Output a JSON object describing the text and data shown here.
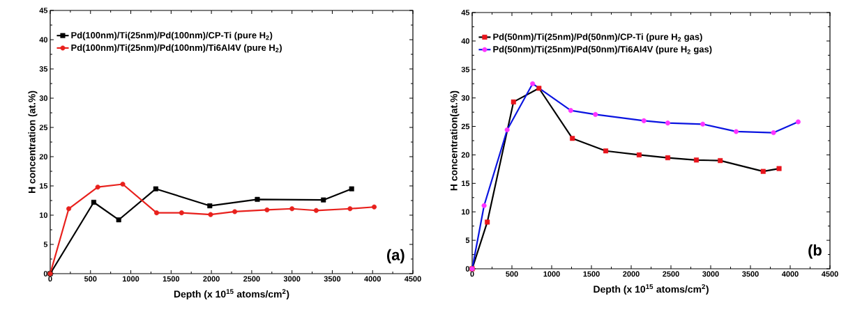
{
  "chart_data": [
    {
      "type": "line",
      "xlabel": "Depth (x 10$^{15}$ atoms/cm$^{2}$)",
      "ylabel": "H concentration (at.%)",
      "xlim": [
        0,
        4500
      ],
      "ylim": [
        0,
        45
      ],
      "xticks": [
        0,
        500,
        1000,
        1500,
        2000,
        2500,
        3000,
        3500,
        4000,
        4500
      ],
      "yticks": [
        0,
        5,
        10,
        15,
        20,
        25,
        30,
        35,
        40,
        45
      ],
      "legend": "top left",
      "annotations": [
        "(a)"
      ],
      "series": [
        {
          "name": "Pd(100nm)/Ti(25nm)/Pd(100nm)/CP-Ti     (pure H$_{2}$)",
          "color": "#000000",
          "marker": "square",
          "x": [
            0,
            540,
            850,
            1310,
            1980,
            2570,
            3390,
            3740
          ],
          "values": [
            0,
            12.2,
            9.2,
            14.5,
            11.6,
            12.7,
            12.6,
            14.5
          ]
        },
        {
          "name": "Pd(100nm)/Ti(25nm)/Pd(100nm)/Ti6Al4V  (pure H$_{2}$)",
          "color": "#e8201c",
          "marker": "circle",
          "x": [
            0,
            230,
            590,
            900,
            1320,
            1630,
            1990,
            2290,
            2690,
            3000,
            3300,
            3720,
            4020
          ],
          "values": [
            0,
            11.1,
            14.8,
            15.3,
            10.4,
            10.4,
            10.1,
            10.6,
            10.9,
            11.1,
            10.8,
            11.1,
            11.4
          ]
        }
      ]
    },
    {
      "type": "line",
      "xlabel": "Depth (x 10$^{15}$ atoms/cm$^{2}$)",
      "ylabel": "H concentration(at.%)",
      "xlim": [
        0,
        4500
      ],
      "ylim": [
        0,
        45
      ],
      "xticks": [
        0,
        500,
        1000,
        1500,
        2000,
        2500,
        3000,
        3500,
        4000,
        4500
      ],
      "yticks": [
        0,
        5,
        10,
        15,
        20,
        25,
        30,
        35,
        40,
        45
      ],
      "legend": "top left",
      "annotations": [
        "(b"
      ],
      "series": [
        {
          "name": "Pd(50nm)/Ti(25nm)/Pd(50nm)/CP-Ti   (pure H$_{2}$ gas)",
          "color": "#000000",
          "colors": [
            "#e8141c",
            "#e8141c",
            "#e8141c",
            "#e8141c",
            "#e8141c",
            "#e8141c",
            "#e8141c",
            "#e8141c",
            "#e8141c",
            "#e8141c",
            "#e8141c",
            "#e8141c"
          ],
          "marker": "square",
          "x": [
            0,
            190,
            520,
            840,
            1260,
            1680,
            2100,
            2460,
            2820,
            3120,
            3660,
            3860
          ],
          "values": [
            0,
            8.2,
            29.3,
            31.7,
            22.9,
            20.7,
            20.0,
            19.5,
            19.1,
            19.0,
            17.1,
            17.6
          ]
        },
        {
          "name": "Pd(50nm)/Ti(25nm)/Pd(50nm)/Ti6Al4V (pure H$_{2}$ gas)",
          "color": "#0a14e0",
          "colors": [
            "#ff33ff",
            "#ff33ff",
            "#ff33ff",
            "#ff33ff",
            "#ff33ff",
            "#ff33ff",
            "#ff33ff",
            "#ff33ff",
            "#ff33ff",
            "#ff33ff",
            "#ff33ff",
            "#ff33ff"
          ],
          "marker": "circle",
          "x": [
            0,
            150,
            440,
            760,
            1240,
            1550,
            2160,
            2460,
            2900,
            3320,
            3790,
            4100
          ],
          "values": [
            0,
            11.1,
            24.4,
            32.5,
            27.8,
            27.1,
            26.0,
            25.6,
            25.4,
            24.1,
            23.9,
            25.8
          ]
        }
      ]
    }
  ]
}
